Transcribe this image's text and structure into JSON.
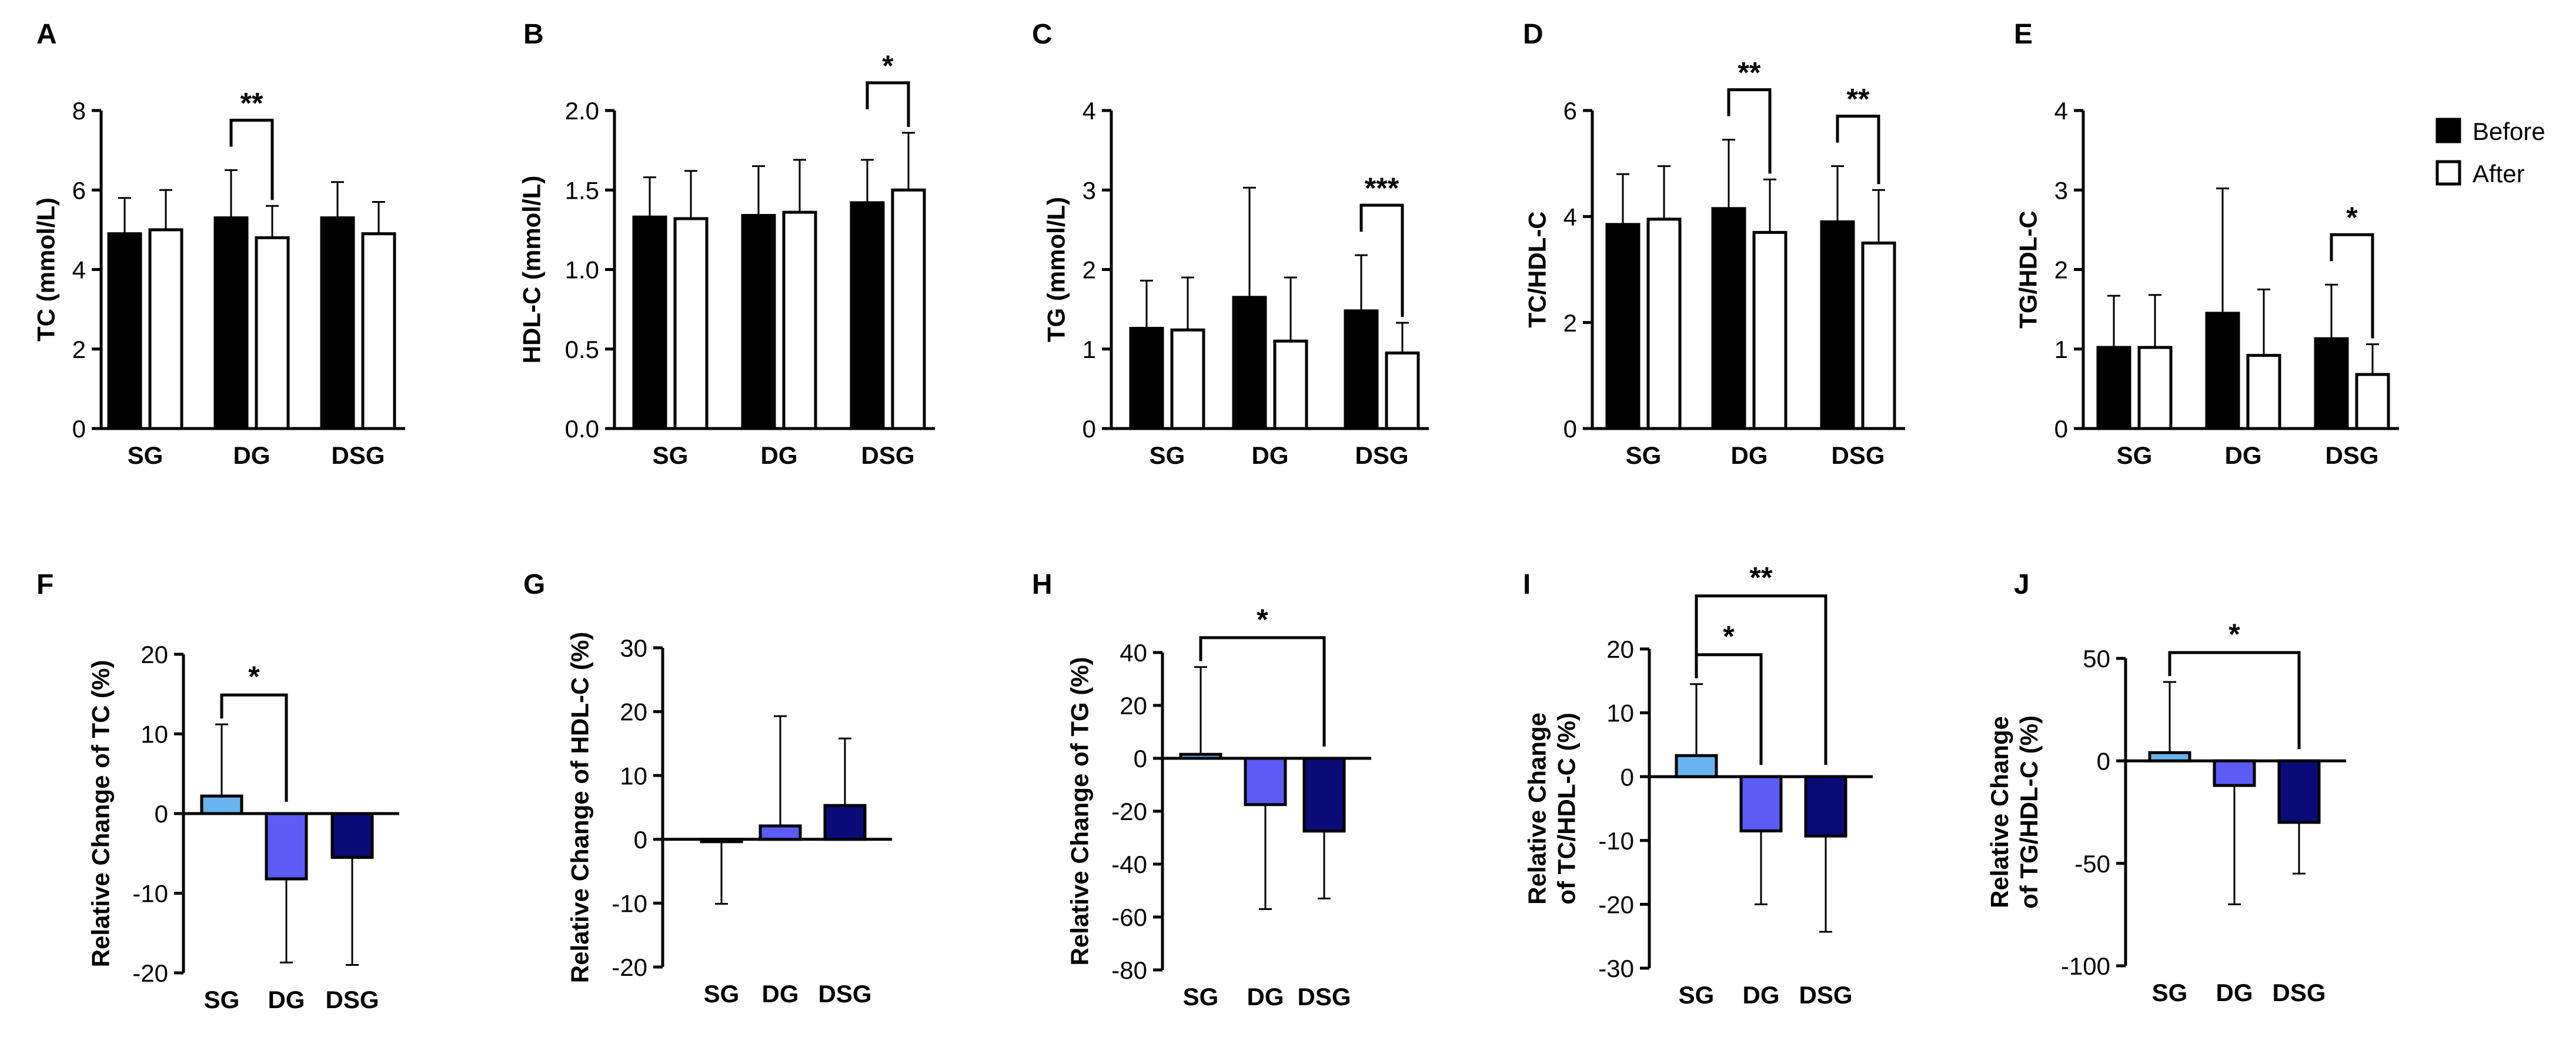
{
  "legend": {
    "placement": "top-right",
    "items": [
      {
        "label": "Before",
        "fill": "#000000"
      },
      {
        "label": "After",
        "fill": "#ffffff"
      }
    ]
  },
  "colors": {
    "before": "#000000",
    "after": "#ffffff",
    "SG": "#69b4ee",
    "DG": "#5b5bf5",
    "DSG": "#0a0a78"
  },
  "chart_data": [
    {
      "panel": "A",
      "type": "bar",
      "ylabel": "TC (mmol/L)",
      "categories": [
        "SG",
        "DG",
        "DSG"
      ],
      "ylim": [
        0,
        8
      ],
      "yticks": [
        0,
        2,
        4,
        6,
        8
      ],
      "ytick_labels": [
        "0",
        "2",
        "4",
        "6",
        "8"
      ],
      "series": [
        {
          "name": "Before",
          "values": [
            4.9,
            5.3,
            5.3
          ],
          "errors": [
            0.9,
            1.2,
            0.9
          ]
        },
        {
          "name": "After",
          "values": [
            5.0,
            4.8,
            4.9
          ],
          "errors": [
            1.0,
            0.8,
            0.8
          ]
        }
      ],
      "significance": [
        {
          "from": [
            1,
            0
          ],
          "to": [
            1,
            1
          ],
          "label": "**"
        }
      ]
    },
    {
      "panel": "B",
      "type": "bar",
      "ylabel": "HDL-C (mmol/L)",
      "categories": [
        "SG",
        "DG",
        "DSG"
      ],
      "ylim": [
        0,
        2
      ],
      "yticks": [
        0,
        0.5,
        1,
        1.5,
        2
      ],
      "ytick_labels": [
        "0.0",
        "0.5",
        "1.0",
        "1.5",
        "2.0"
      ],
      "series": [
        {
          "name": "Before",
          "values": [
            1.33,
            1.34,
            1.42
          ],
          "errors": [
            0.25,
            0.31,
            0.27
          ]
        },
        {
          "name": "After",
          "values": [
            1.32,
            1.36,
            1.5
          ],
          "errors": [
            0.3,
            0.33,
            0.36
          ]
        }
      ],
      "significance": [
        {
          "from": [
            2,
            0
          ],
          "to": [
            2,
            1
          ],
          "label": "*"
        }
      ]
    },
    {
      "panel": "C",
      "type": "bar",
      "ylabel": "TG (mmol/L)",
      "categories": [
        "SG",
        "DG",
        "DSG"
      ],
      "ylim": [
        0,
        4
      ],
      "yticks": [
        0,
        1,
        2,
        3,
        4
      ],
      "ytick_labels": [
        "0",
        "1",
        "2",
        "3",
        "4"
      ],
      "series": [
        {
          "name": "Before",
          "values": [
            1.26,
            1.65,
            1.48
          ],
          "errors": [
            0.6,
            1.38,
            0.7
          ]
        },
        {
          "name": "After",
          "values": [
            1.24,
            1.1,
            0.95
          ],
          "errors": [
            0.66,
            0.8,
            0.38
          ]
        }
      ],
      "significance": [
        {
          "from": [
            2,
            0
          ],
          "to": [
            2,
            1
          ],
          "label": "***"
        }
      ]
    },
    {
      "panel": "D",
      "type": "bar",
      "ylabel": "TC/HDL-C",
      "categories": [
        "SG",
        "DG",
        "DSG"
      ],
      "ylim": [
        0,
        6
      ],
      "yticks": [
        0,
        2,
        4,
        6
      ],
      "ytick_labels": [
        "0",
        "2",
        "4",
        "6"
      ],
      "series": [
        {
          "name": "Before",
          "values": [
            3.85,
            4.15,
            3.9
          ],
          "errors": [
            0.95,
            1.3,
            1.05
          ]
        },
        {
          "name": "After",
          "values": [
            3.95,
            3.7,
            3.5
          ],
          "errors": [
            1.0,
            1.0,
            1.0
          ]
        }
      ],
      "significance": [
        {
          "from": [
            1,
            0
          ],
          "to": [
            1,
            1
          ],
          "label": "**"
        },
        {
          "from": [
            2,
            0
          ],
          "to": [
            2,
            1
          ],
          "label": "**"
        }
      ]
    },
    {
      "panel": "E",
      "type": "bar",
      "ylabel": "TG/HDL-C",
      "categories": [
        "SG",
        "DG",
        "DSG"
      ],
      "ylim": [
        0,
        4
      ],
      "yticks": [
        0,
        1,
        2,
        3,
        4
      ],
      "ytick_labels": [
        "0",
        "1",
        "2",
        "3",
        "4"
      ],
      "series": [
        {
          "name": "Before",
          "values": [
            1.02,
            1.45,
            1.13
          ],
          "errors": [
            0.65,
            1.57,
            0.68
          ]
        },
        {
          "name": "After",
          "values": [
            1.02,
            0.92,
            0.68
          ],
          "errors": [
            0.66,
            0.83,
            0.38
          ]
        }
      ],
      "significance": [
        {
          "from": [
            2,
            0
          ],
          "to": [
            2,
            1
          ],
          "label": "*"
        }
      ]
    },
    {
      "panel": "F",
      "type": "bar",
      "ylabel": "Relative Change of TC (%)",
      "categories": [
        "SG",
        "DG",
        "DSG"
      ],
      "ylim": [
        -20,
        20
      ],
      "yticks": [
        -20,
        -10,
        0,
        10,
        20
      ],
      "ytick_labels": [
        "-20",
        "-10",
        "0",
        "10",
        "20"
      ],
      "values": [
        2.2,
        -8.2,
        -5.5
      ],
      "errors": [
        9.0,
        10.5,
        13.5
      ],
      "significance": [
        {
          "from": 0,
          "to": 1,
          "label": "*"
        }
      ]
    },
    {
      "panel": "G",
      "type": "bar",
      "ylabel": "Relative Change of HDL-C (%)",
      "categories": [
        "SG",
        "DG",
        "DSG"
      ],
      "ylim": [
        -20,
        30
      ],
      "yticks": [
        -20,
        -10,
        0,
        10,
        20,
        30
      ],
      "ytick_labels": [
        "-20",
        "-10",
        "0",
        "10",
        "20",
        "30"
      ],
      "values": [
        -0.3,
        2.1,
        5.3
      ],
      "errors": [
        9.8,
        17.2,
        10.5
      ],
      "significance": []
    },
    {
      "panel": "H",
      "type": "bar",
      "ylabel": "Relative Change of TG (%)",
      "categories": [
        "SG",
        "DG",
        "DSG"
      ],
      "ylim": [
        -80,
        40
      ],
      "yticks": [
        -80,
        -60,
        -40,
        -20,
        0,
        20,
        40
      ],
      "ytick_labels": [
        "-80",
        "-60",
        "-40",
        "-20",
        "0",
        "20",
        "40"
      ],
      "values": [
        1.5,
        -17.5,
        -27.5
      ],
      "errors": [
        33.0,
        39.5,
        25.5
      ],
      "significance": [
        {
          "from": 0,
          "to": 2,
          "label": "*"
        }
      ]
    },
    {
      "panel": "I",
      "type": "bar",
      "ylabel": [
        "Relative Change",
        "of TC/HDL-C (%)"
      ],
      "categories": [
        "SG",
        "DG",
        "DSG"
      ],
      "ylim": [
        -30,
        20
      ],
      "yticks": [
        -30,
        -20,
        -10,
        0,
        10,
        20
      ],
      "ytick_labels": [
        "-30",
        "-20",
        "-10",
        "0",
        "10",
        "20"
      ],
      "values": [
        3.3,
        -8.5,
        -9.3
      ],
      "errors": [
        11.2,
        11.5,
        15.0
      ],
      "significance": [
        {
          "from": 0,
          "to": 1,
          "label": "*"
        },
        {
          "from": 0,
          "to": 2,
          "label": "**"
        }
      ]
    },
    {
      "panel": "J",
      "type": "bar",
      "ylabel": [
        "Relative Change",
        "of TG/HDL-C (%)"
      ],
      "categories": [
        "SG",
        "DG",
        "DSG"
      ],
      "ylim": [
        -100,
        50
      ],
      "yticks": [
        -100,
        -50,
        0,
        50
      ],
      "ytick_labels": [
        "-100",
        "-50",
        "0",
        "50"
      ],
      "values": [
        4.0,
        -12.0,
        -30.0
      ],
      "errors": [
        34.5,
        58.0,
        25.0
      ],
      "significance": [
        {
          "from": 0,
          "to": 2,
          "label": "*"
        }
      ]
    }
  ]
}
